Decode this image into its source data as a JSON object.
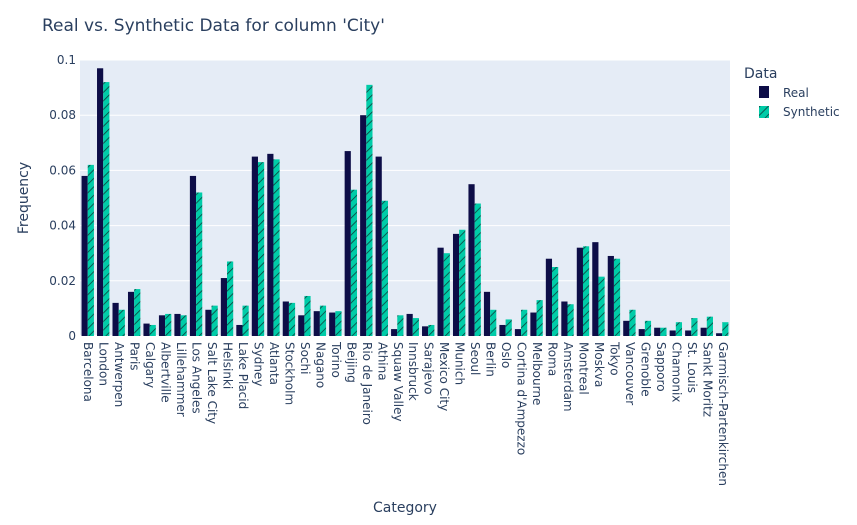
{
  "chart_data": {
    "type": "bar",
    "title": "Real vs. Synthetic Data for column 'City'",
    "xlabel": "Category",
    "ylabel": "Frequency",
    "ylim": [
      0,
      0.1
    ],
    "yticks": [
      0,
      0.02,
      0.04,
      0.06,
      0.08,
      0.1
    ],
    "ytick_labels": [
      "0",
      "0.02",
      "0.04",
      "0.06",
      "0.08",
      "0.1"
    ],
    "grid": true,
    "legend_title": "Data",
    "legend_position": "top-right",
    "categories": [
      "Barcelona",
      "London",
      "Antwerpen",
      "Paris",
      "Calgary",
      "Albertville",
      "Lillehammer",
      "Los Angeles",
      "Salt Lake City",
      "Helsinki",
      "Lake Placid",
      "Sydney",
      "Atlanta",
      "Stockholm",
      "Sochi",
      "Nagano",
      "Torino",
      "Beijing",
      "Rio de Janeiro",
      "Athina",
      "Squaw Valley",
      "Innsbruck",
      "Sarajevo",
      "Mexico City",
      "Munich",
      "Seoul",
      "Berlin",
      "Oslo",
      "Cortina d'Ampezzo",
      "Melbourne",
      "Roma",
      "Amsterdam",
      "Montreal",
      "Moskva",
      "Tokyo",
      "Vancouver",
      "Grenoble",
      "Sapporo",
      "Chamonix",
      "St. Louis",
      "Sankt Moritz",
      "Garmisch-Partenkirchen"
    ],
    "series": [
      {
        "name": "Real",
        "color": "#0d0d47",
        "values": [
          0.058,
          0.097,
          0.012,
          0.016,
          0.0045,
          0.0075,
          0.008,
          0.058,
          0.0095,
          0.021,
          0.004,
          0.065,
          0.066,
          0.0125,
          0.0075,
          0.009,
          0.0085,
          0.067,
          0.08,
          0.065,
          0.0025,
          0.008,
          0.0035,
          0.032,
          0.037,
          0.055,
          0.016,
          0.004,
          0.0025,
          0.0085,
          0.028,
          0.0125,
          0.032,
          0.034,
          0.029,
          0.0055,
          0.0025,
          0.003,
          0.002,
          0.002,
          0.003,
          0.001
        ]
      },
      {
        "name": "Synthetic",
        "color": "#00cca8",
        "pattern": "diagonal",
        "values": [
          0.062,
          0.092,
          0.0095,
          0.017,
          0.004,
          0.008,
          0.0075,
          0.052,
          0.011,
          0.027,
          0.011,
          0.063,
          0.064,
          0.012,
          0.0145,
          0.011,
          0.009,
          0.053,
          0.091,
          0.049,
          0.0075,
          0.0065,
          0.004,
          0.03,
          0.0385,
          0.048,
          0.0095,
          0.006,
          0.0095,
          0.013,
          0.025,
          0.0115,
          0.0325,
          0.0215,
          0.028,
          0.0095,
          0.0055,
          0.003,
          0.005,
          0.0065,
          0.007,
          0.005
        ]
      }
    ]
  }
}
